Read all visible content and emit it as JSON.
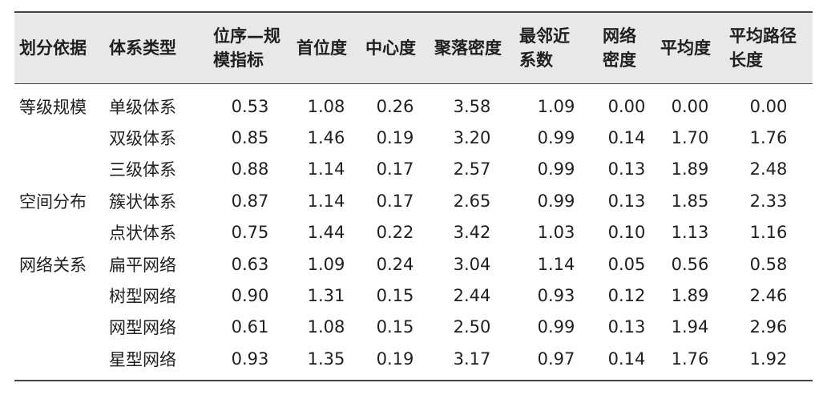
{
  "table": {
    "headers": [
      "划分依据",
      "体系类型",
      "位序—规\n模指标",
      "首位度",
      "中心度",
      "聚落密度",
      "最邻近\n系数",
      "网络\n密度",
      "平均度",
      "平均路径\n长度"
    ],
    "rows": [
      [
        "等级规模",
        "单级体系",
        "0.53",
        "1.08",
        "0.26",
        "3.58",
        "1.09",
        "0.00",
        "0.00",
        "0.00"
      ],
      [
        "",
        "双级体系",
        "0.85",
        "1.46",
        "0.19",
        "3.20",
        "0.99",
        "0.14",
        "1.70",
        "1.76"
      ],
      [
        "",
        "三级体系",
        "0.88",
        "1.14",
        "0.17",
        "2.57",
        "0.99",
        "0.13",
        "1.89",
        "2.48"
      ],
      [
        "空间分布",
        "簇状体系",
        "0.87",
        "1.14",
        "0.17",
        "2.65",
        "0.99",
        "0.13",
        "1.85",
        "2.33"
      ],
      [
        "",
        "点状体系",
        "0.75",
        "1.44",
        "0.22",
        "3.42",
        "1.03",
        "0.10",
        "1.13",
        "1.16"
      ],
      [
        "网络关系",
        "扁平网络",
        "0.63",
        "1.09",
        "0.24",
        "3.04",
        "1.14",
        "0.05",
        "0.56",
        "0.58"
      ],
      [
        "",
        "树型网络",
        "0.90",
        "1.31",
        "0.15",
        "2.44",
        "0.93",
        "0.12",
        "1.89",
        "2.46"
      ],
      [
        "",
        "网型网络",
        "0.61",
        "1.08",
        "0.15",
        "2.50",
        "0.99",
        "0.13",
        "1.94",
        "2.96"
      ],
      [
        "",
        "星型网络",
        "0.93",
        "1.35",
        "0.19",
        "3.17",
        "0.97",
        "0.14",
        "1.76",
        "1.92"
      ]
    ]
  }
}
